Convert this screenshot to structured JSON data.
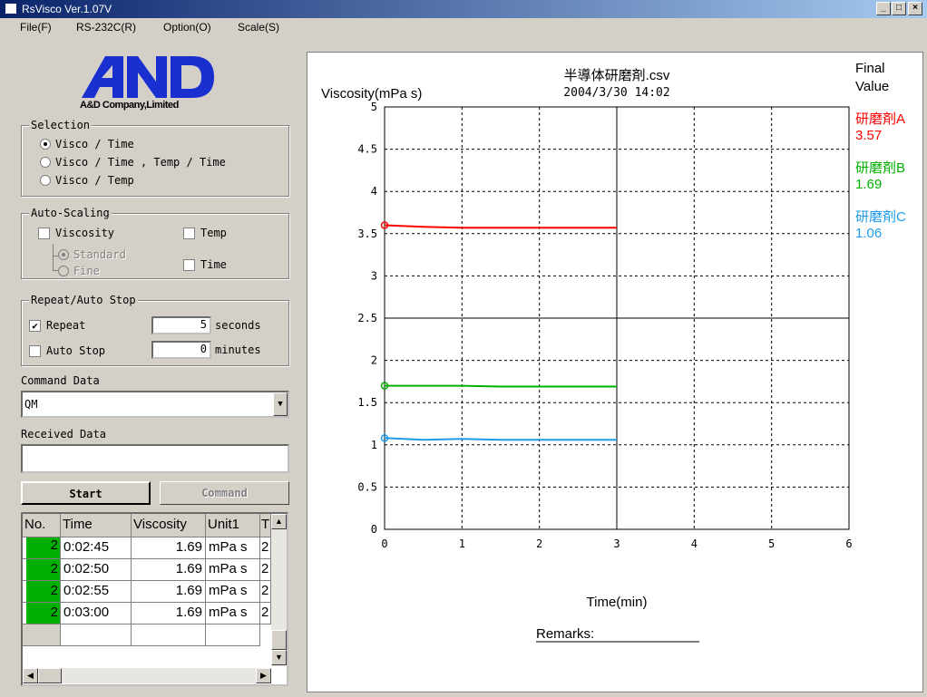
{
  "window": {
    "title": "RsVisco Ver.1.07V"
  },
  "menu": [
    "File(F)",
    "RS-232C(R)",
    "Option(O)",
    "Scale(S)"
  ],
  "logo": {
    "brand": "A&D",
    "company": "A&D Company,Limited"
  },
  "selection": {
    "label": "Selection",
    "options": [
      {
        "label": "Visco / Time",
        "selected": true
      },
      {
        "label": "Visco / Time , Temp / Time",
        "selected": false
      },
      {
        "label": "Visco / Temp",
        "selected": false
      }
    ]
  },
  "autoscaling": {
    "label": "Auto-Scaling",
    "viscosity": "Viscosity",
    "standard": "Standard",
    "fine": "Fine",
    "temp": "Temp",
    "time": "Time"
  },
  "repeat": {
    "label": "Repeat/Auto Stop",
    "repeat_label": "Repeat",
    "repeat_value": "5",
    "repeat_unit": "seconds",
    "autostop_label": "Auto Stop",
    "autostop_value": "0",
    "autostop_unit": "minutes"
  },
  "command": {
    "label": "Command Data",
    "value": "QM"
  },
  "received": {
    "label": "Received Data",
    "value": ""
  },
  "buttons": {
    "start": "Start",
    "command": "Command"
  },
  "table": {
    "headers": [
      "No.",
      "Time",
      "Viscosity",
      "Unit1",
      "T"
    ],
    "rows": [
      [
        "2",
        "0:02:45",
        "1.69",
        "mPa s",
        "2"
      ],
      [
        "2",
        "0:02:50",
        "1.69",
        "mPa s",
        "2"
      ],
      [
        "2",
        "0:02:55",
        "1.69",
        "mPa s",
        "2"
      ],
      [
        "2",
        "0:03:00",
        "1.69",
        "mPa s",
        "2"
      ]
    ]
  },
  "chart_data": {
    "type": "line",
    "title": "半導体研磨剤.csv",
    "subtitle": "2004/3/30 14:02",
    "ylabel": "Viscosity(mPa s)",
    "xlabel": "Time(min)",
    "xlim": [
      0,
      6
    ],
    "ylim": [
      0,
      5
    ],
    "xticks": [
      "0",
      "1",
      "2",
      "3",
      "4",
      "5",
      "6"
    ],
    "yticks": [
      "0",
      "0.5",
      "1",
      "1.5",
      "2",
      "2.5",
      "3",
      "3.5",
      "4",
      "4.5",
      "5"
    ],
    "grid": true,
    "final_value_label": "Final Value",
    "remarks": "Remarks:",
    "series": [
      {
        "name": "研磨剤A",
        "final": "3.57",
        "color": "#ff0000",
        "x": [
          0,
          0.5,
          1,
          1.5,
          2,
          2.5,
          3
        ],
        "y": [
          3.6,
          3.58,
          3.57,
          3.57,
          3.57,
          3.57,
          3.57
        ]
      },
      {
        "name": "研磨剤B",
        "final": "1.69",
        "color": "#00b000",
        "x": [
          0,
          0.5,
          1,
          1.5,
          2,
          2.5,
          3
        ],
        "y": [
          1.7,
          1.7,
          1.7,
          1.69,
          1.69,
          1.69,
          1.69
        ]
      },
      {
        "name": "研磨剤C",
        "final": "1.06",
        "color": "#1e9bea",
        "x": [
          0,
          0.5,
          1,
          1.5,
          2,
          2.5,
          3
        ],
        "y": [
          1.08,
          1.06,
          1.07,
          1.06,
          1.06,
          1.06,
          1.06
        ]
      }
    ]
  },
  "colors": {
    "row_marker": "#00b000",
    "titlebar_start": "#0a246a",
    "titlebar_end": "#a6caf0"
  }
}
